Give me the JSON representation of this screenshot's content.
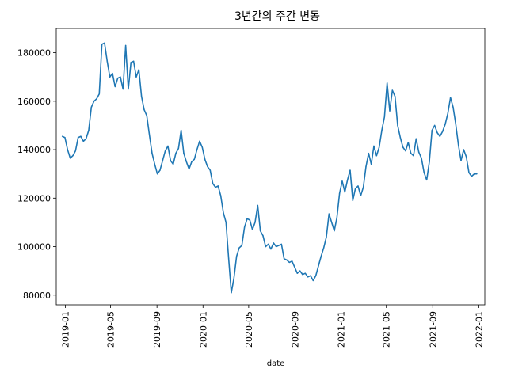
{
  "chart_data": {
    "type": "line",
    "title": "3년간의 주간 변동",
    "xlabel": "date",
    "ylabel": "",
    "grid": false,
    "legend": "none",
    "xlim": [
      "2018-12-08",
      "2022-01-17"
    ],
    "ylim": [
      76000,
      190000
    ],
    "x_ticks": [
      "2019-01",
      "2019-05",
      "2019-09",
      "2020-01",
      "2020-05",
      "2020-09",
      "2021-01",
      "2021-05",
      "2021-09",
      "2022-01"
    ],
    "y_ticks": [
      80000,
      100000,
      120000,
      140000,
      160000,
      180000
    ],
    "y_tick_labels": [
      "80000",
      "100000",
      "120000",
      "140000",
      "160000",
      "180000"
    ],
    "series": [
      {
        "color": "#1f77b4",
        "points": [
          [
            "2018-12-24",
            145500
          ],
          [
            "2018-12-31",
            145000
          ],
          [
            "2019-01-07",
            140000
          ],
          [
            "2019-01-14",
            136500
          ],
          [
            "2019-01-21",
            137500
          ],
          [
            "2019-01-28",
            139500
          ],
          [
            "2019-02-04",
            145000
          ],
          [
            "2019-02-11",
            145500
          ],
          [
            "2019-02-18",
            143500
          ],
          [
            "2019-02-25",
            144500
          ],
          [
            "2019-03-04",
            148000
          ],
          [
            "2019-03-11",
            157500
          ],
          [
            "2019-03-18",
            160000
          ],
          [
            "2019-03-25",
            161000
          ],
          [
            "2019-04-01",
            163000
          ],
          [
            "2019-04-08",
            183500
          ],
          [
            "2019-04-15",
            184000
          ],
          [
            "2019-04-22",
            176500
          ],
          [
            "2019-04-29",
            170000
          ],
          [
            "2019-05-06",
            171500
          ],
          [
            "2019-05-13",
            166000
          ],
          [
            "2019-05-20",
            169500
          ],
          [
            "2019-05-27",
            170000
          ],
          [
            "2019-06-03",
            165000
          ],
          [
            "2019-06-10",
            183000
          ],
          [
            "2019-06-17",
            165000
          ],
          [
            "2019-06-24",
            176000
          ],
          [
            "2019-07-01",
            176500
          ],
          [
            "2019-07-08",
            170000
          ],
          [
            "2019-07-15",
            173000
          ],
          [
            "2019-07-22",
            162000
          ],
          [
            "2019-07-29",
            156500
          ],
          [
            "2019-08-05",
            154000
          ],
          [
            "2019-08-12",
            146000
          ],
          [
            "2019-08-19",
            138500
          ],
          [
            "2019-08-26",
            134000
          ],
          [
            "2019-09-02",
            130000
          ],
          [
            "2019-09-09",
            131500
          ],
          [
            "2019-09-16",
            135500
          ],
          [
            "2019-09-23",
            139500
          ],
          [
            "2019-09-30",
            141500
          ],
          [
            "2019-10-07",
            135500
          ],
          [
            "2019-10-14",
            134000
          ],
          [
            "2019-10-21",
            138500
          ],
          [
            "2019-10-28",
            140500
          ],
          [
            "2019-11-04",
            148000
          ],
          [
            "2019-11-11",
            138500
          ],
          [
            "2019-11-18",
            135000
          ],
          [
            "2019-11-25",
            132000
          ],
          [
            "2019-12-02",
            135000
          ],
          [
            "2019-12-09",
            136000
          ],
          [
            "2019-12-16",
            140000
          ],
          [
            "2019-12-23",
            143500
          ],
          [
            "2019-12-30",
            141000
          ],
          [
            "2020-01-06",
            136000
          ],
          [
            "2020-01-13",
            133000
          ],
          [
            "2020-01-20",
            131500
          ],
          [
            "2020-01-27",
            126000
          ],
          [
            "2020-02-03",
            124500
          ],
          [
            "2020-02-10",
            125000
          ],
          [
            "2020-02-17",
            121000
          ],
          [
            "2020-02-24",
            114000
          ],
          [
            "2020-03-02",
            110000
          ],
          [
            "2020-03-09",
            95000
          ],
          [
            "2020-03-16",
            81000
          ],
          [
            "2020-03-23",
            87000
          ],
          [
            "2020-03-30",
            96000
          ],
          [
            "2020-04-06",
            99500
          ],
          [
            "2020-04-13",
            100500
          ],
          [
            "2020-04-20",
            108000
          ],
          [
            "2020-04-27",
            111500
          ],
          [
            "2020-05-04",
            111000
          ],
          [
            "2020-05-11",
            107000
          ],
          [
            "2020-05-18",
            110000
          ],
          [
            "2020-05-25",
            117000
          ],
          [
            "2020-06-01",
            106500
          ],
          [
            "2020-06-08",
            104500
          ],
          [
            "2020-06-15",
            100000
          ],
          [
            "2020-06-22",
            101000
          ],
          [
            "2020-06-29",
            99000
          ],
          [
            "2020-07-06",
            101500
          ],
          [
            "2020-07-13",
            100000
          ],
          [
            "2020-07-20",
            100500
          ],
          [
            "2020-07-27",
            101000
          ],
          [
            "2020-08-03",
            95000
          ],
          [
            "2020-08-10",
            94500
          ],
          [
            "2020-08-17",
            93500
          ],
          [
            "2020-08-24",
            94000
          ],
          [
            "2020-08-31",
            91500
          ],
          [
            "2020-09-07",
            89000
          ],
          [
            "2020-09-14",
            90000
          ],
          [
            "2020-09-21",
            88500
          ],
          [
            "2020-09-28",
            89000
          ],
          [
            "2020-10-05",
            87500
          ],
          [
            "2020-10-12",
            88000
          ],
          [
            "2020-10-19",
            86000
          ],
          [
            "2020-10-26",
            88000
          ],
          [
            "2020-11-02",
            92000
          ],
          [
            "2020-11-09",
            96000
          ],
          [
            "2020-11-16",
            99500
          ],
          [
            "2020-11-23",
            104000
          ],
          [
            "2020-11-30",
            113500
          ],
          [
            "2020-12-07",
            110000
          ],
          [
            "2020-12-14",
            106500
          ],
          [
            "2020-12-21",
            112000
          ],
          [
            "2020-12-28",
            122000
          ],
          [
            "2021-01-04",
            127000
          ],
          [
            "2021-01-11",
            122500
          ],
          [
            "2021-01-18",
            127500
          ],
          [
            "2021-01-25",
            131500
          ],
          [
            "2021-02-01",
            119000
          ],
          [
            "2021-02-08",
            124000
          ],
          [
            "2021-02-15",
            125000
          ],
          [
            "2021-02-22",
            121000
          ],
          [
            "2021-03-01",
            124500
          ],
          [
            "2021-03-08",
            133000
          ],
          [
            "2021-03-15",
            138500
          ],
          [
            "2021-03-22",
            134000
          ],
          [
            "2021-03-29",
            141500
          ],
          [
            "2021-04-05",
            137500
          ],
          [
            "2021-04-12",
            141000
          ],
          [
            "2021-04-19",
            148000
          ],
          [
            "2021-04-26",
            153500
          ],
          [
            "2021-05-03",
            167500
          ],
          [
            "2021-05-10",
            156000
          ],
          [
            "2021-05-17",
            164500
          ],
          [
            "2021-05-24",
            162000
          ],
          [
            "2021-05-31",
            150000
          ],
          [
            "2021-06-07",
            145000
          ],
          [
            "2021-06-14",
            141000
          ],
          [
            "2021-06-21",
            139500
          ],
          [
            "2021-06-28",
            143000
          ],
          [
            "2021-07-05",
            138500
          ],
          [
            "2021-07-12",
            137500
          ],
          [
            "2021-07-19",
            144500
          ],
          [
            "2021-07-26",
            139000
          ],
          [
            "2021-08-02",
            136500
          ],
          [
            "2021-08-09",
            130500
          ],
          [
            "2021-08-16",
            127500
          ],
          [
            "2021-08-23",
            135000
          ],
          [
            "2021-08-30",
            148000
          ],
          [
            "2021-09-06",
            150000
          ],
          [
            "2021-09-13",
            147000
          ],
          [
            "2021-09-20",
            145500
          ],
          [
            "2021-09-27",
            147500
          ],
          [
            "2021-10-04",
            150500
          ],
          [
            "2021-10-11",
            155000
          ],
          [
            "2021-10-18",
            161500
          ],
          [
            "2021-10-25",
            157500
          ],
          [
            "2021-11-01",
            150500
          ],
          [
            "2021-11-08",
            142000
          ],
          [
            "2021-11-15",
            135500
          ],
          [
            "2021-11-22",
            140000
          ],
          [
            "2021-11-29",
            137000
          ],
          [
            "2021-12-06",
            130500
          ],
          [
            "2021-12-13",
            129000
          ],
          [
            "2021-12-20",
            130000
          ],
          [
            "2021-12-27",
            130000
          ]
        ]
      }
    ]
  }
}
